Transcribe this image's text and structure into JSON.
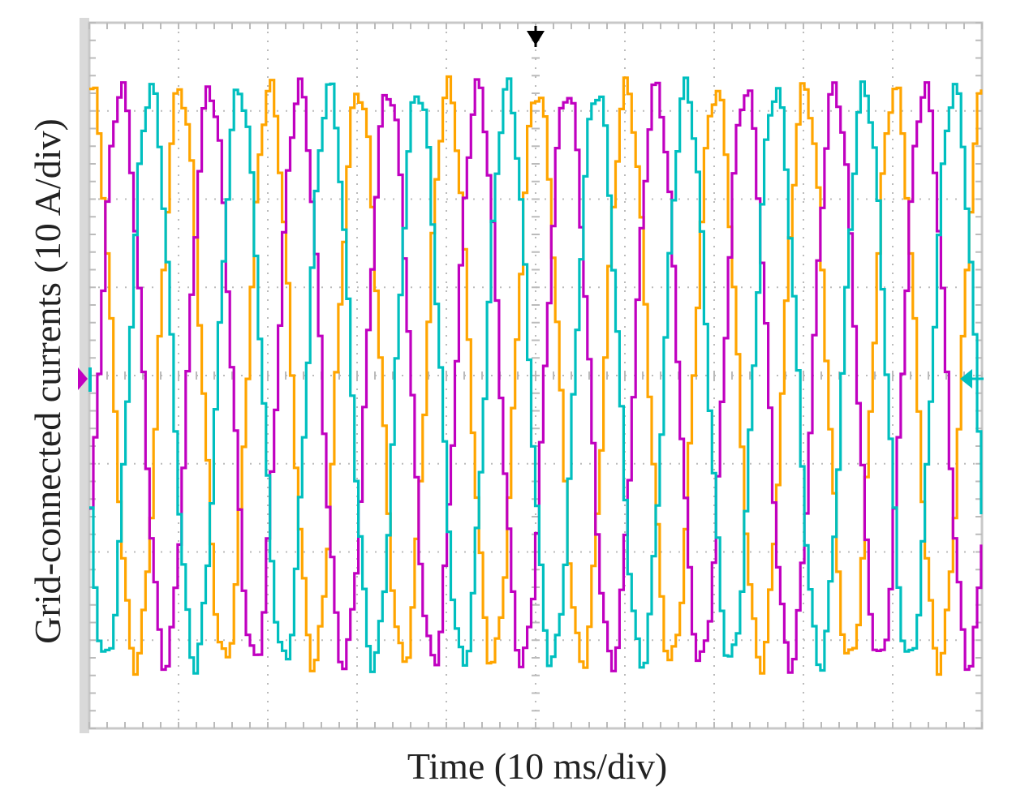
{
  "chart_data": {
    "type": "line",
    "title": "",
    "xlabel": "Time (10 ms/div)",
    "ylabel": "Grid-connected currents (10 A/div)",
    "x_divisions": 10,
    "y_divisions": 8,
    "x_range_ms": [
      0,
      100
    ],
    "y_range_A": [
      -40,
      40
    ],
    "grid": true,
    "grid_style": "dotted",
    "legend": "none",
    "waveform": "sinusoidal, three-phase",
    "frequency_hz": 100,
    "series": [
      {
        "color": "#FFA500",
        "amplitude_A": 32.5,
        "phase_deg": 90
      },
      {
        "color": "#C000C0",
        "amplitude_A": 32.5,
        "phase_deg": -30
      },
      {
        "color": "#00BFBF",
        "amplitude_A": 32.5,
        "phase_deg": 210
      }
    ]
  },
  "colors": {
    "background": "#FFFFFF",
    "grid": "#BBBBBB",
    "frame": "#C8C8C8",
    "marker_trigger": "#000000"
  }
}
